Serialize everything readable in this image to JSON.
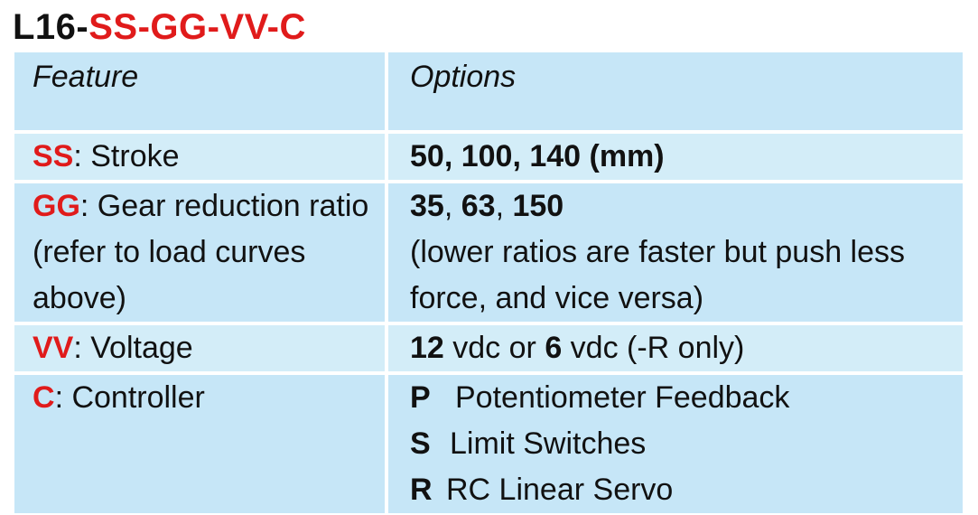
{
  "title": {
    "prefix": "L16-",
    "code": "SS-GG-VV-C"
  },
  "table": {
    "headers": {
      "feature": "Feature",
      "options": "Options"
    },
    "rows": [
      {
        "code": "SS",
        "feature_text": ": Stroke",
        "options_bold": "50, 100, 140 (mm)"
      },
      {
        "code": "GG",
        "feature_text": ": Gear reduction ratio (refer to load curves above)",
        "options": {
          "v1": "35",
          "sep1": ", ",
          "v2": "63",
          "sep2": ", ",
          "v3": "150",
          "note": "(lower ratios are faster but push less force, and vice versa)"
        }
      },
      {
        "code": "VV",
        "feature_text": ": Voltage",
        "options": {
          "v1": "12",
          "mid": " vdc or ",
          "v2": "6",
          "end": " vdc (-R only)"
        }
      },
      {
        "code": "C",
        "feature_text": ": Controller",
        "options": [
          {
            "key": "P",
            "label": "Potentiometer Feedback"
          },
          {
            "key": "S",
            "label": "Limit Switches"
          },
          {
            "key": "R",
            "label": "RC Linear Servo"
          }
        ]
      }
    ]
  }
}
